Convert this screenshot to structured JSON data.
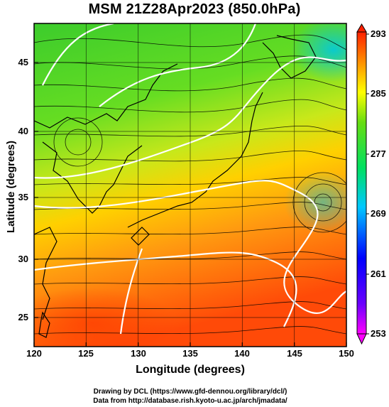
{
  "title": "MSM 21Z28Apr2023 (850.0hPa)",
  "x_axis": {
    "label": "Longitude (degrees)",
    "ticks": [
      "120",
      "125",
      "130",
      "135",
      "140",
      "145",
      "150"
    ]
  },
  "y_axis": {
    "label": "Latitude  (degrees)",
    "ticks": [
      "45",
      "40",
      "35",
      "30",
      "25"
    ]
  },
  "colorbar": {
    "ticks": [
      "293",
      "285",
      "277",
      "269",
      "261",
      "253"
    ],
    "colors": [
      "#ff00ff",
      "#0000ff",
      "#00c8ff",
      "#00ff66",
      "#ffff00",
      "#ff2a00"
    ]
  },
  "credits": {
    "line1": "Drawing by DCL (https://www.gfd-dennou.org/library/dcl/)",
    "line2": "Data from http://database.rish.kyoto-u.ac.jp/arch/jmadata/"
  },
  "colors": {
    "warm": "#ff6a10",
    "mid": "#ffd000",
    "cool": "#22cc22",
    "cold": "#00d8b0",
    "contour": "#ffffff",
    "streamline": "#000000"
  }
}
